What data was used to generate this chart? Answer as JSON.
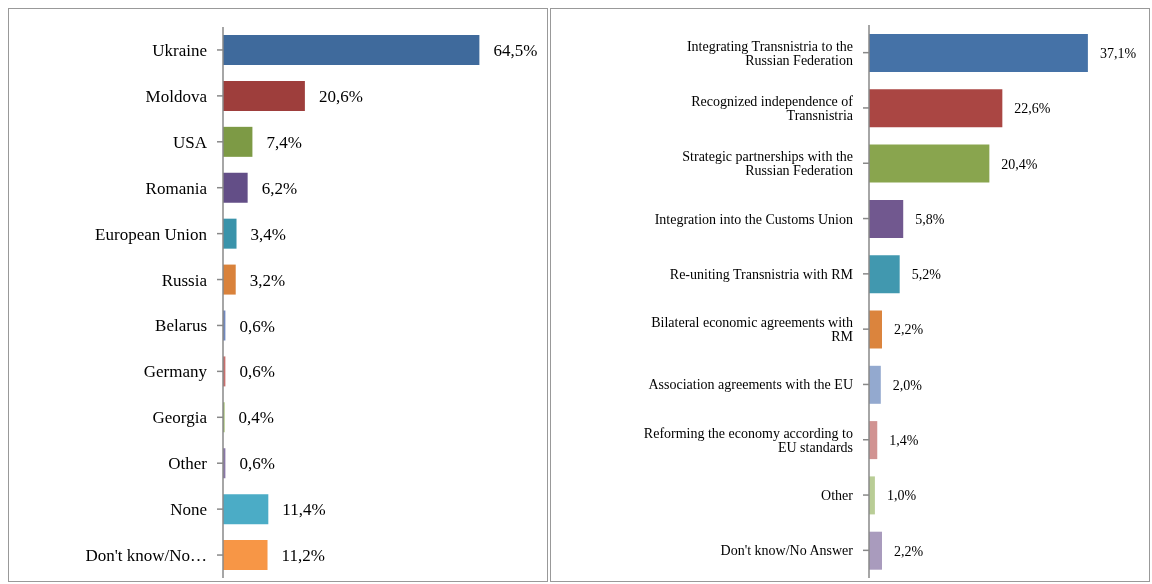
{
  "chart_data": [
    {
      "type": "bar",
      "orientation": "horizontal",
      "categories": [
        "Ukraine",
        "Moldova",
        "USA",
        "Romania",
        "European Union",
        "Russia",
        "Belarus",
        "Germany",
        "Georgia",
        "Other",
        "None",
        "Don't know/No…"
      ],
      "values": [
        64.5,
        20.6,
        7.4,
        6.2,
        3.4,
        3.2,
        0.6,
        0.6,
        0.4,
        0.6,
        11.4,
        11.2
      ],
      "colors": [
        "#3f6a9c",
        "#9e3e3c",
        "#7d9a45",
        "#634e87",
        "#3a93aa",
        "#d9823b",
        "#7189bf",
        "#c8706e",
        "#9dbb67",
        "#8a78a8",
        "#4bacc6",
        "#f79646"
      ],
      "value_labels": [
        "64,5%",
        "20,6%",
        "7,4%",
        "6,2%",
        "3,4%",
        "3,2%",
        "0,6%",
        "0,6%",
        "0,4%",
        "0,6%",
        "11,4%",
        "11,2%"
      ],
      "tick_labels": "y"
    },
    {
      "type": "bar",
      "orientation": "horizontal",
      "categories": [
        "Integrating Transnistria to the Russian Federation",
        "Recognized independence of Transnistria",
        "Strategic partnerships with the Russian Federation",
        "Integration into the Customs Union",
        "Re-uniting Transnistria with RM",
        "Bilateral economic agreements with RM",
        "Association agreements with the EU",
        "Reforming the economy according to EU standards",
        "Other",
        "Don't know/No Answer"
      ],
      "values": [
        37.1,
        22.6,
        20.4,
        5.8,
        5.2,
        2.2,
        2.0,
        1.4,
        1.0,
        2.2
      ],
      "colors": [
        "#4572a7",
        "#aa4643",
        "#89a54e",
        "#71588f",
        "#4198af",
        "#db843d",
        "#93a9cf",
        "#d19392",
        "#b9cd96",
        "#a99bbd"
      ],
      "value_labels": [
        "37,1%",
        "22,6%",
        "20,4%",
        "5,8%",
        "5,2%",
        "2,2%",
        "2,0%",
        "1,4%",
        "1,0%",
        "2,2%"
      ],
      "tick_labels": "y"
    }
  ]
}
